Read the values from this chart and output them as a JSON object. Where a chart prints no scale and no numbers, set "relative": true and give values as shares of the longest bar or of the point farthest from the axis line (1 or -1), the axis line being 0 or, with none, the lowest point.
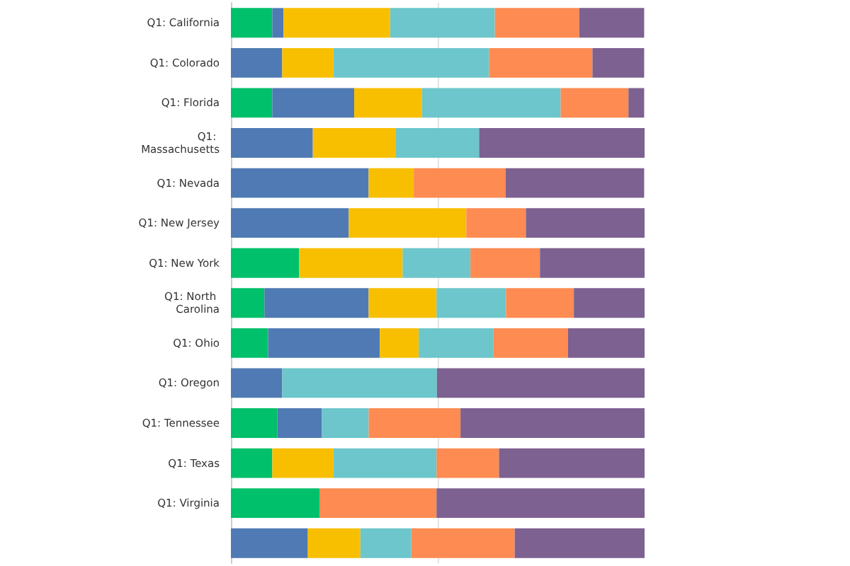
{
  "chart_data": {
    "type": "bar",
    "orientation": "horizontal",
    "stacked": true,
    "relative": true,
    "ref_lines": [
      {
        "axis": "x",
        "value": 0.5,
        "color": "#e4e4e4"
      }
    ],
    "categories": [
      "Q1: California",
      "Q1: Colorado",
      "Q1: Florida",
      "Q1: Massachusetts",
      "Q1: Nevada",
      "Q1: New Jersey",
      "Q1: New York",
      "Q1: North Carolina",
      "Q1: Ohio",
      "Q1: Oregon",
      "Q1: Tennessee",
      "Q1: Texas",
      "Q1: Virginia",
      null
    ],
    "series": [
      {
        "color": "#00c06b",
        "values": [
          0.1,
          null,
          0.1,
          null,
          null,
          null,
          0.165,
          0.081,
          0.09,
          null,
          0.112,
          0.1,
          0.214,
          null
        ]
      },
      {
        "color": "#4f7ab3",
        "values": [
          0.027,
          0.124,
          0.198,
          0.198,
          0.333,
          0.285,
          null,
          0.252,
          0.27,
          0.124,
          0.108,
          null,
          null,
          0.186
        ]
      },
      {
        "color": "#f8bf00",
        "values": [
          0.258,
          0.124,
          0.164,
          0.201,
          0.109,
          0.284,
          0.25,
          0.164,
          0.094,
          null,
          null,
          0.148,
          null,
          0.127
        ]
      },
      {
        "color": "#6cc6cb",
        "values": [
          0.253,
          0.376,
          0.335,
          0.201,
          null,
          null,
          0.164,
          0.168,
          0.18,
          0.374,
          0.113,
          0.249,
          null,
          0.123
        ]
      },
      {
        "color": "#fd8b52",
        "values": [
          0.204,
          0.25,
          0.164,
          null,
          0.222,
          0.144,
          0.168,
          0.164,
          0.181,
          null,
          0.222,
          0.151,
          0.283,
          0.25
        ]
      },
      {
        "color": "#7d6190",
        "values": [
          0.157,
          0.125,
          0.038,
          0.4,
          0.335,
          0.287,
          0.253,
          0.171,
          0.185,
          0.502,
          0.445,
          0.352,
          0.503,
          0.314
        ]
      }
    ]
  }
}
